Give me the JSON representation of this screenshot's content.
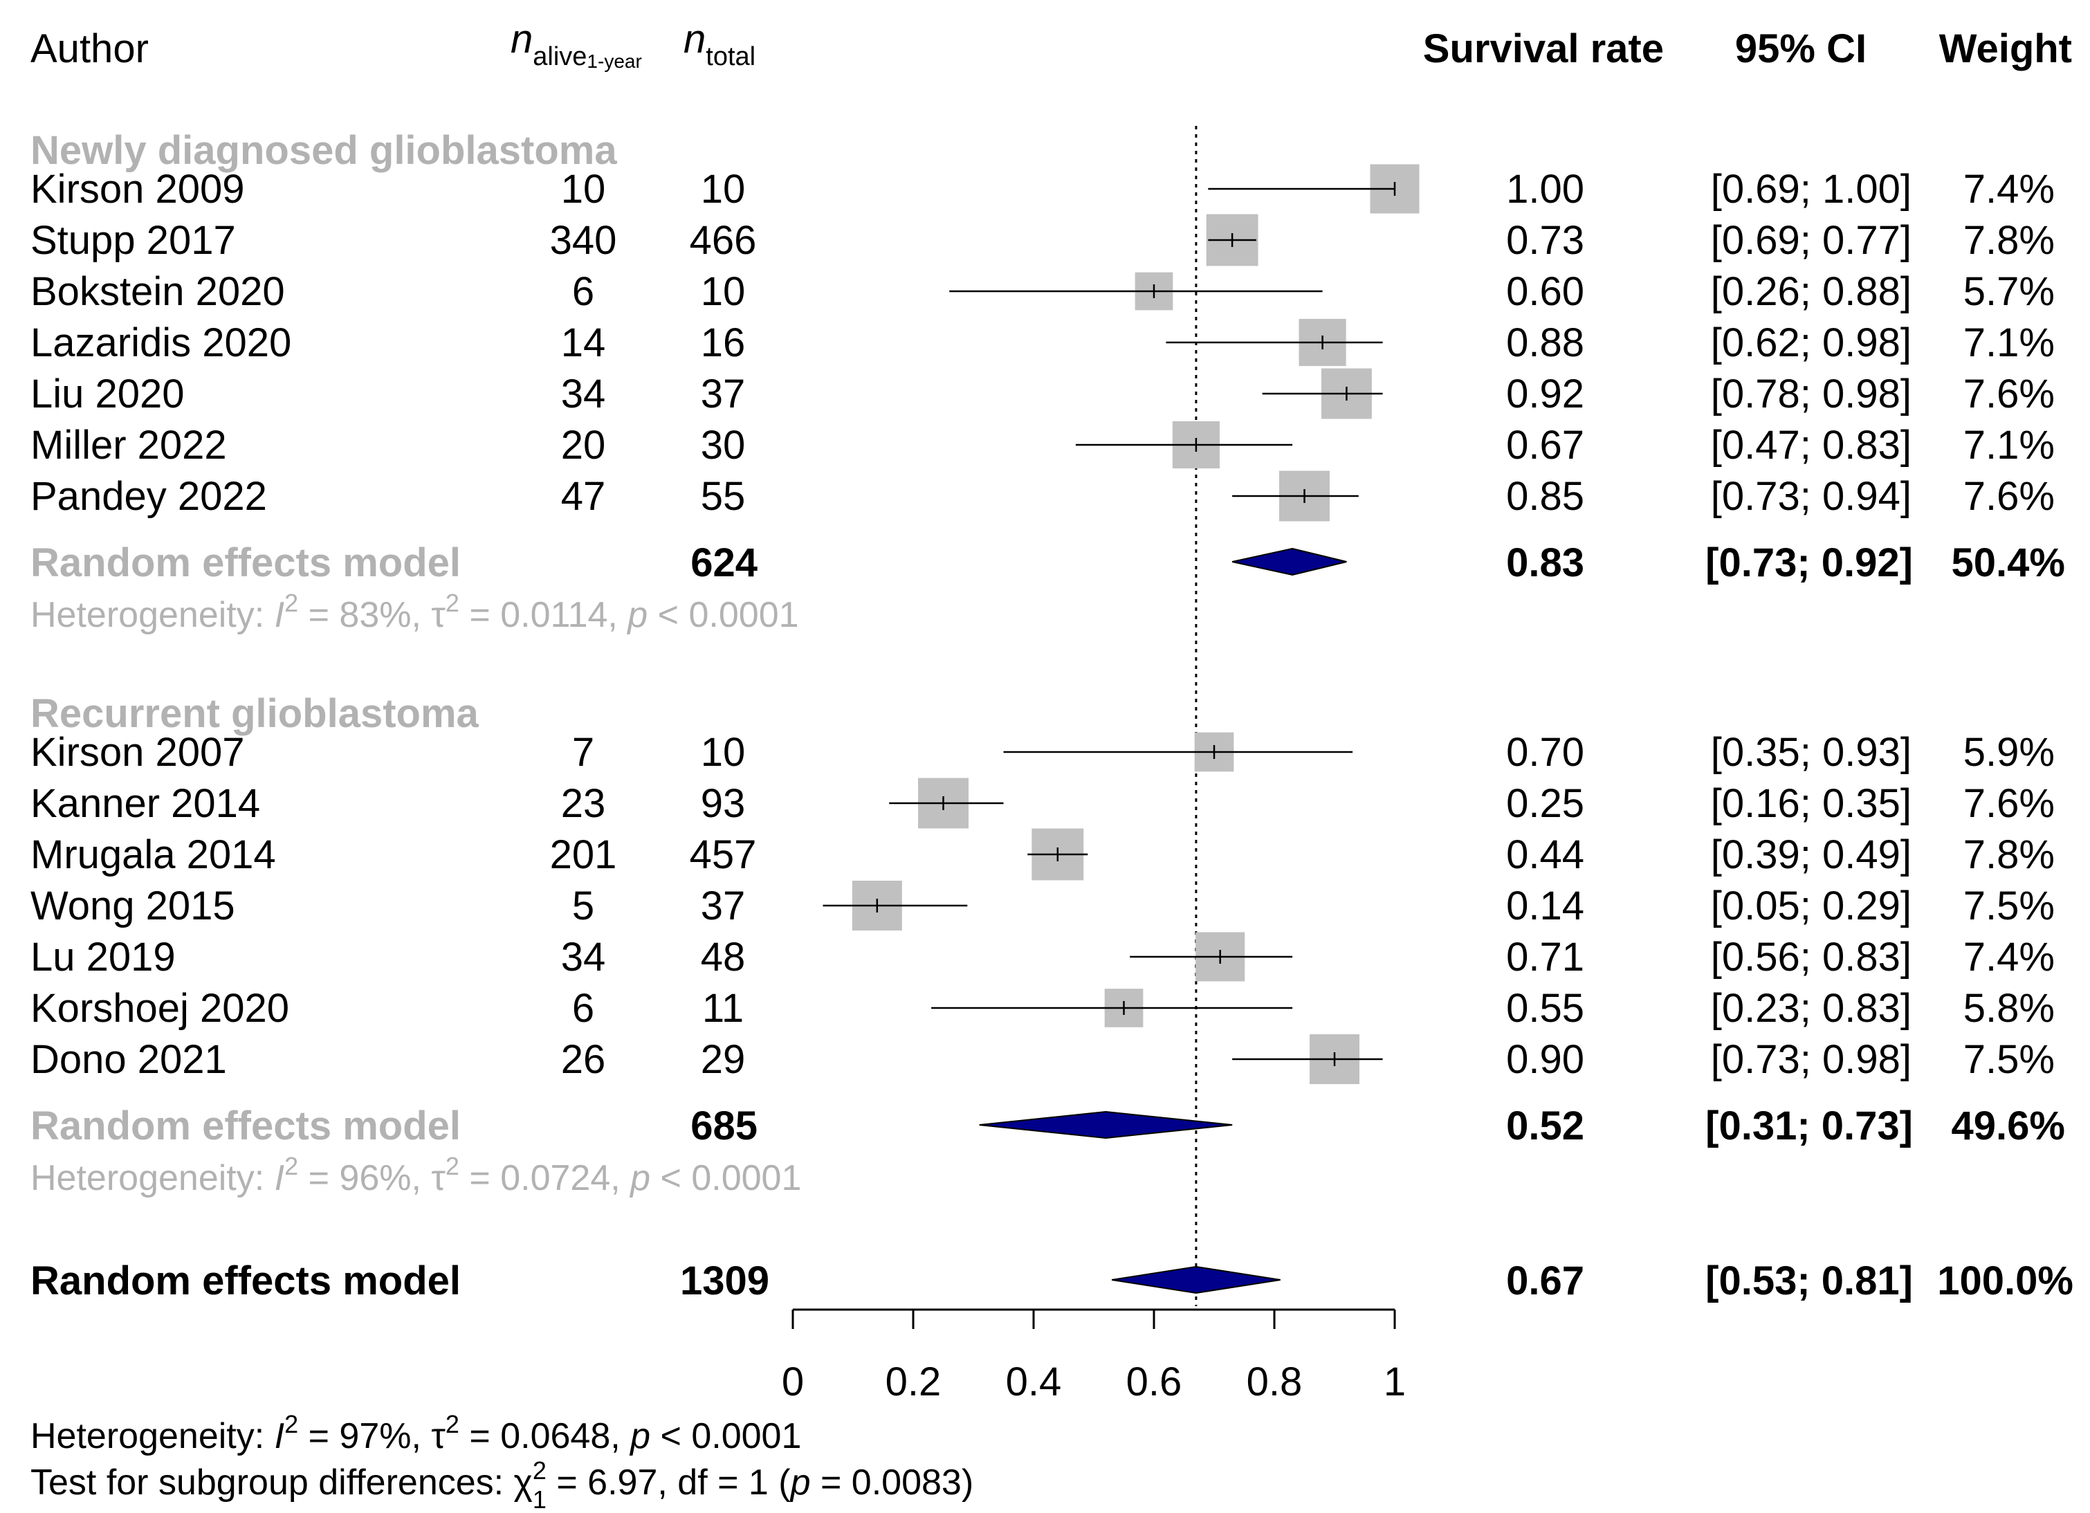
{
  "chart_data": {
    "type": "forest",
    "title": "",
    "columns": {
      "author": "Author",
      "n_alive_main": "n",
      "n_alive_sub": "alive",
      "n_alive_subsub": "1-year",
      "n_total_main": "n",
      "n_total_sub": "total",
      "estimate": "Survival rate",
      "ci": "95% CI",
      "weight": "Weight"
    },
    "xaxis": {
      "min": 0,
      "max": 1,
      "ticks": [
        "0",
        "0.2",
        "0.4",
        "0.6",
        "0.8",
        "1"
      ],
      "tick_values": [
        0,
        0.2,
        0.4,
        0.6,
        0.8,
        1
      ],
      "reference_line": 0.67
    },
    "groups": [
      {
        "name": "Newly diagnosed glioblastoma",
        "studies": [
          {
            "author": "Kirson 2009",
            "n_alive": "10",
            "n_total": "10",
            "est": 1.0,
            "lower": 0.69,
            "upper": 1.0,
            "est_text": "1.00",
            "ci_text": "[0.69; 1.00]",
            "weight_text": "7.4%",
            "weight": 7.4
          },
          {
            "author": "Stupp 2017",
            "n_alive": "340",
            "n_total": "466",
            "est": 0.73,
            "lower": 0.69,
            "upper": 0.77,
            "est_text": "0.73",
            "ci_text": "[0.69; 0.77]",
            "weight_text": "7.8%",
            "weight": 7.8
          },
          {
            "author": "Bokstein 2020",
            "n_alive": "6",
            "n_total": "10",
            "est": 0.6,
            "lower": 0.26,
            "upper": 0.88,
            "est_text": "0.60",
            "ci_text": "[0.26; 0.88]",
            "weight_text": "5.7%",
            "weight": 5.7
          },
          {
            "author": "Lazaridis 2020",
            "n_alive": "14",
            "n_total": "16",
            "est": 0.88,
            "lower": 0.62,
            "upper": 0.98,
            "est_text": "0.88",
            "ci_text": "[0.62; 0.98]",
            "weight_text": "7.1%",
            "weight": 7.1
          },
          {
            "author": "Liu 2020",
            "n_alive": "34",
            "n_total": "37",
            "est": 0.92,
            "lower": 0.78,
            "upper": 0.98,
            "est_text": "0.92",
            "ci_text": "[0.78; 0.98]",
            "weight_text": "7.6%",
            "weight": 7.6
          },
          {
            "author": "Miller 2022",
            "n_alive": "20",
            "n_total": "30",
            "est": 0.67,
            "lower": 0.47,
            "upper": 0.83,
            "est_text": "0.67",
            "ci_text": "[0.47; 0.83]",
            "weight_text": "7.1%",
            "weight": 7.1
          },
          {
            "author": "Pandey 2022",
            "n_alive": "47",
            "n_total": "55",
            "est": 0.85,
            "lower": 0.73,
            "upper": 0.94,
            "est_text": "0.85",
            "ci_text": "[0.73; 0.94]",
            "weight_text": "7.6%",
            "weight": 7.6
          }
        ],
        "summary": {
          "label": "Random effects model",
          "n_total": "624",
          "est": 0.83,
          "lower": 0.73,
          "upper": 0.92,
          "est_text": "0.83",
          "ci_text": "[0.73; 0.92]",
          "weight_text": "50.4%"
        },
        "heterogeneity": {
          "prefix": "Heterogeneity: ",
          "i": "I",
          "i_sup": "2",
          "i_val": " = 83%, ",
          "tau": "τ",
          "tau_sup": "2",
          "tau_val": " = 0.0114, ",
          "p": "p",
          "p_val": " < 0.0001"
        }
      },
      {
        "name": "Recurrent glioblastoma",
        "studies": [
          {
            "author": "Kirson 2007",
            "n_alive": "7",
            "n_total": "10",
            "est": 0.7,
            "lower": 0.35,
            "upper": 0.93,
            "est_text": "0.70",
            "ci_text": "[0.35; 0.93]",
            "weight_text": "5.9%",
            "weight": 5.9
          },
          {
            "author": "Kanner 2014",
            "n_alive": "23",
            "n_total": "93",
            "est": 0.25,
            "lower": 0.16,
            "upper": 0.35,
            "est_text": "0.25",
            "ci_text": "[0.16; 0.35]",
            "weight_text": "7.6%",
            "weight": 7.6
          },
          {
            "author": "Mrugala 2014",
            "n_alive": "201",
            "n_total": "457",
            "est": 0.44,
            "lower": 0.39,
            "upper": 0.49,
            "est_text": "0.44",
            "ci_text": "[0.39; 0.49]",
            "weight_text": "7.8%",
            "weight": 7.8
          },
          {
            "author": "Wong 2015",
            "n_alive": "5",
            "n_total": "37",
            "est": 0.14,
            "lower": 0.05,
            "upper": 0.29,
            "est_text": "0.14",
            "ci_text": "[0.05; 0.29]",
            "weight_text": "7.5%",
            "weight": 7.5
          },
          {
            "author": "Lu 2019",
            "n_alive": "34",
            "n_total": "48",
            "est": 0.71,
            "lower": 0.56,
            "upper": 0.83,
            "est_text": "0.71",
            "ci_text": "[0.56; 0.83]",
            "weight_text": "7.4%",
            "weight": 7.4
          },
          {
            "author": "Korshoej 2020",
            "n_alive": "6",
            "n_total": "11",
            "est": 0.55,
            "lower": 0.23,
            "upper": 0.83,
            "est_text": "0.55",
            "ci_text": "[0.23; 0.83]",
            "weight_text": "5.8%",
            "weight": 5.8
          },
          {
            "author": "Dono 2021",
            "n_alive": "26",
            "n_total": "29",
            "est": 0.9,
            "lower": 0.73,
            "upper": 0.98,
            "est_text": "0.90",
            "ci_text": "[0.73; 0.98]",
            "weight_text": "7.5%",
            "weight": 7.5
          }
        ],
        "summary": {
          "label": "Random effects model",
          "n_total": "685",
          "est": 0.52,
          "lower": 0.31,
          "upper": 0.73,
          "est_text": "0.52",
          "ci_text": "[0.31; 0.73]",
          "weight_text": "49.6%"
        },
        "heterogeneity": {
          "prefix": "Heterogeneity: ",
          "i": "I",
          "i_sup": "2",
          "i_val": " = 96%, ",
          "tau": "τ",
          "tau_sup": "2",
          "tau_val": " = 0.0724, ",
          "p": "p",
          "p_val": " < 0.0001"
        }
      }
    ],
    "overall": {
      "label": "Random effects model",
      "n_total": "1309",
      "est": 0.67,
      "lower": 0.53,
      "upper": 0.81,
      "est_text": "0.67",
      "ci_text": "[0.53; 0.81]",
      "weight_text": "100.0%",
      "heterogeneity": {
        "prefix": "Heterogeneity: ",
        "i": "I",
        "i_sup": "2",
        "i_val": " = 97%, ",
        "tau": "τ",
        "tau_sup": "2",
        "tau_val": " = 0.0648, ",
        "p": "p",
        "p_val": " < 0.0001"
      },
      "subgroup_test": {
        "prefix": "Test for subgroup differences: ",
        "chi": "χ",
        "chi_sup": "2",
        "chi_sub": "1",
        "chi_val": " = 6.97, df = 1 (",
        "p": "p",
        "p_val": " = 0.0083)"
      }
    },
    "colors": {
      "box": "#c0c0c0",
      "diamond_fill": "#00008b",
      "diamond_stroke": "#000000",
      "ci_line": "#000000",
      "group_label": "#b2b2b2"
    }
  }
}
